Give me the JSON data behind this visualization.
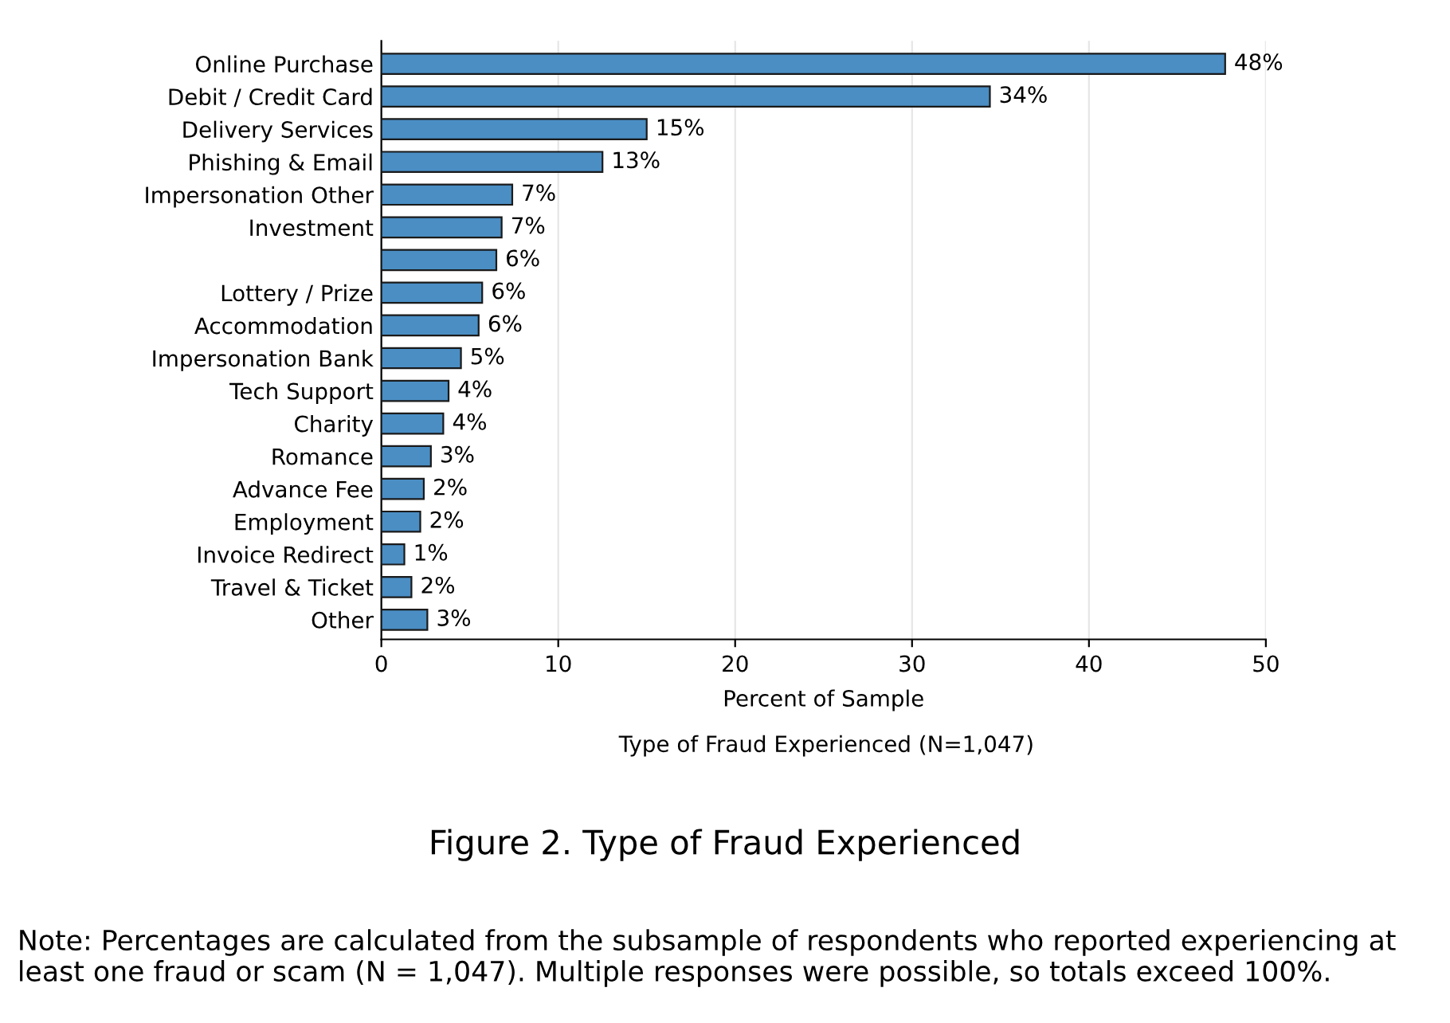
{
  "chart_data": {
    "type": "bar",
    "orientation": "horizontal",
    "title": "Figure 2. Type of Fraud Experienced",
    "subtitle": "Type of Fraud Experienced (N=1,047)",
    "xlabel": "Percent of Sample",
    "annotations": [
      "Note: Percentages are calculated from the subsample of respondents who reported experiencing at least one fraud or scam (N = 1,047). Multiple responses were possible, so totals exceed 100%."
    ],
    "categories": [
      "Online Purchase",
      "Debit / Credit Card",
      "Delivery Services",
      "Phishing & Email",
      "Impersonation Other",
      "Investment",
      null,
      "Lottery / Prize",
      "Accommodation",
      "Impersonation Bank",
      "Tech Support",
      "Charity",
      "Romance",
      "Advance Fee",
      "Employment",
      "Invoice Redirect",
      "Travel & Ticket",
      "Other"
    ],
    "values": [
      47.7,
      34.4,
      15.0,
      12.5,
      7.4,
      6.8,
      6.5,
      5.7,
      5.5,
      4.5,
      3.8,
      3.5,
      2.8,
      2.4,
      2.2,
      1.3,
      1.7,
      2.6
    ],
    "value_labels": [
      "48%",
      "34%",
      "15%",
      "13%",
      "7%",
      "7%",
      "6%",
      "6%",
      "6%",
      "5%",
      "4%",
      "4%",
      "3%",
      "2%",
      "2%",
      "1%",
      "2%",
      "3%"
    ],
    "color": "#4a8ec4",
    "xlim": [
      0,
      50
    ],
    "xticks": [
      0,
      10,
      20,
      30,
      40,
      50
    ],
    "grid": "x"
  }
}
